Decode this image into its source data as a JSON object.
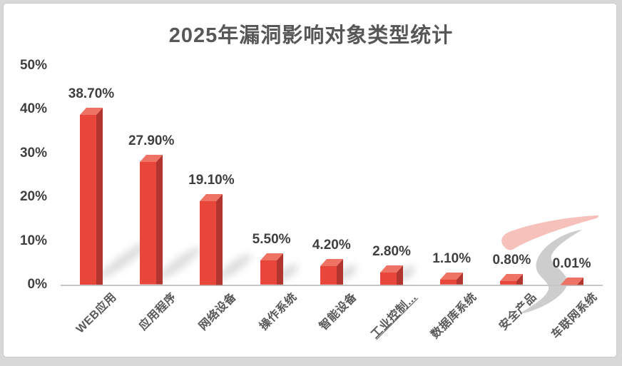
{
  "chart_data": {
    "type": "bar",
    "title": "2025年漏洞影响对象类型统计",
    "categories": [
      "WEB应用",
      "应用程序",
      "网络设备",
      "操作系统",
      "智能设备",
      "工业控制…",
      "数据库系统",
      "安全产品",
      "车联网系统"
    ],
    "values": [
      38.7,
      27.9,
      19.1,
      5.5,
      4.2,
      2.8,
      1.1,
      0.8,
      0.01
    ],
    "value_labels": [
      "38.70%",
      "27.90%",
      "19.10%",
      "5.50%",
      "4.20%",
      "2.80%",
      "1.10%",
      "0.80%",
      "0.01%"
    ],
    "y_ticks": [
      "50%",
      "40%",
      "30%",
      "20%",
      "10%",
      "0%"
    ],
    "ylim": [
      0,
      50
    ],
    "xlabel": "",
    "ylabel": "",
    "grid": false,
    "legend": "none",
    "underlined_category_index": 5,
    "colors": {
      "bar_front": "#e8463a",
      "bar_side": "#b23530",
      "bar_top": "#ef7365",
      "axis_line": "#c6c6c6",
      "title_text": "#575757",
      "tick_text": "#404040",
      "category_text": "#595959"
    }
  },
  "watermark": {
    "name": "brush-stroke-logo",
    "pink": "#f6c0bb",
    "gray": "#c8c8c8"
  }
}
